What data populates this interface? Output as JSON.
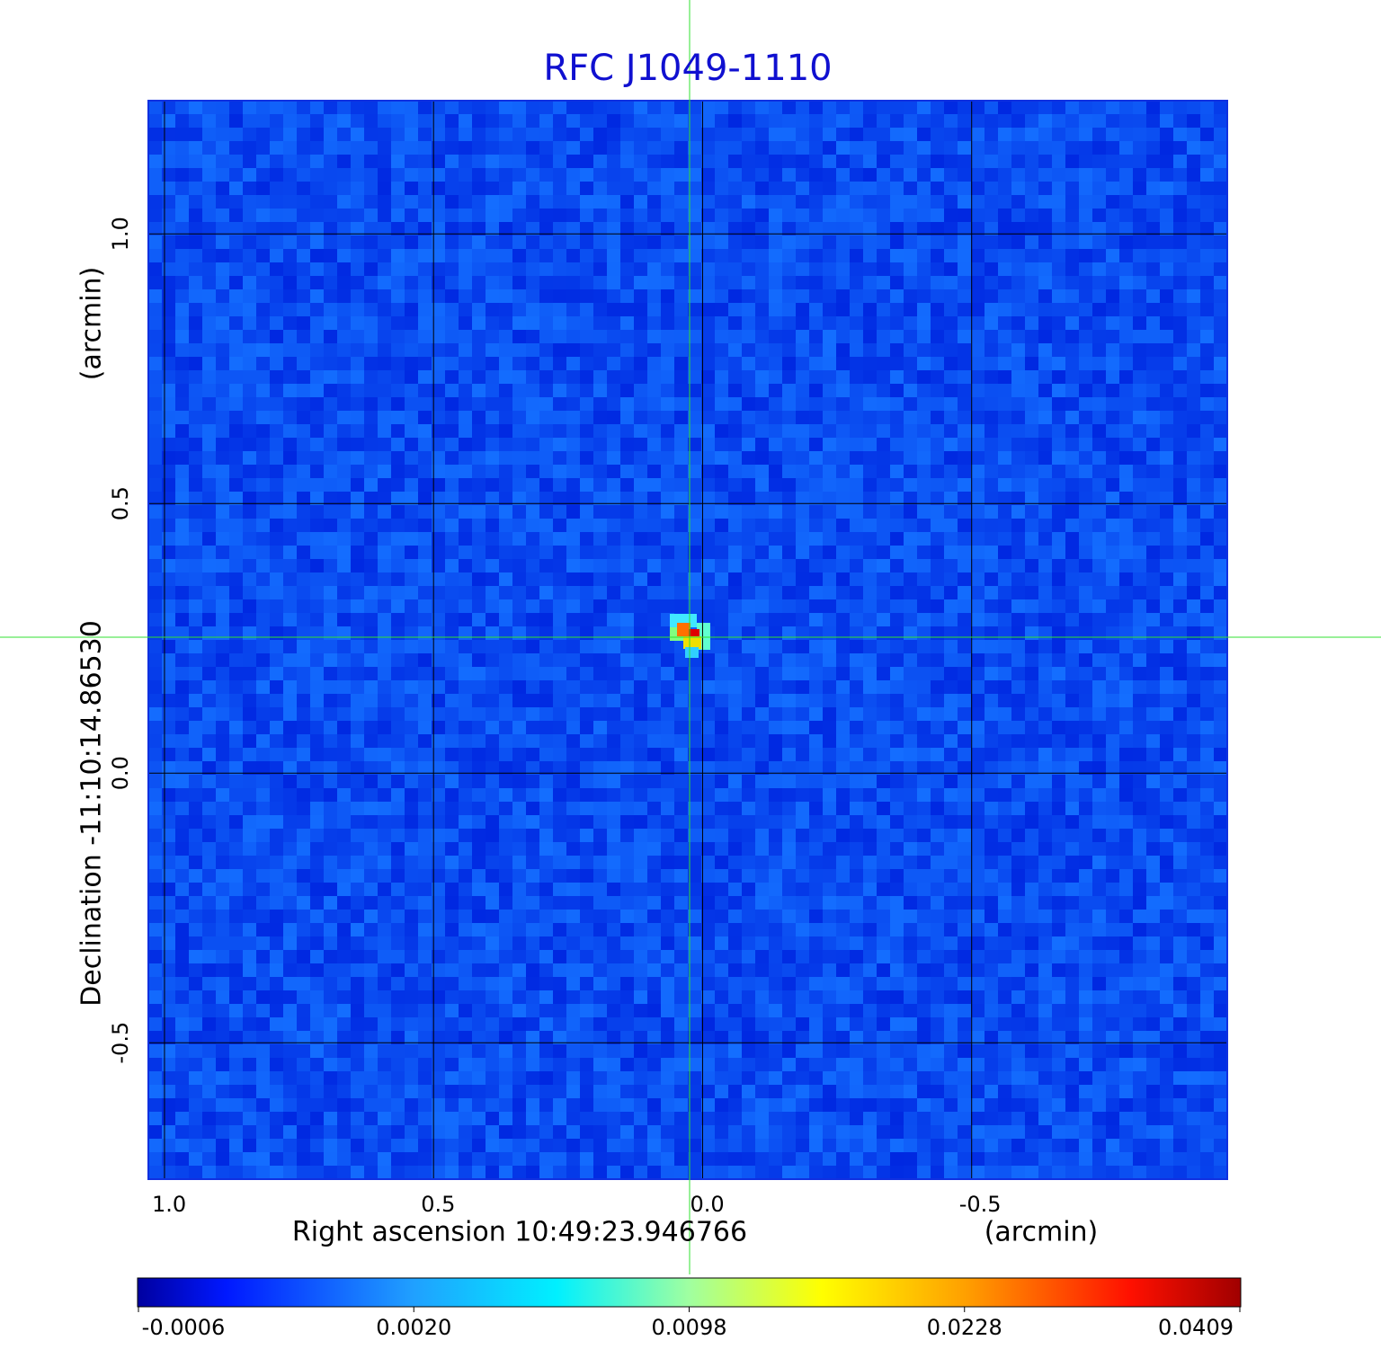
{
  "chart_data": {
    "type": "image",
    "title": "RFC J1049-1110",
    "x_label": "Right ascension  10:49:23.946766",
    "x_unit": "(arcmin)",
    "y_label": "Declination  -11:10:14.86530",
    "y_unit": "(arcmin)",
    "xlim": [
      1.03,
      -0.975
    ],
    "ylim": [
      -0.753,
      1.247
    ],
    "xticks": [
      {
        "value": 1,
        "label": "1.0"
      },
      0.5,
      {
        "value": 0,
        "label": "0.0"
      },
      -0.5
    ],
    "yticks": [
      {
        "value": 1,
        "label": "1.0"
      },
      0.5,
      {
        "value": 0,
        "label": "0.0"
      },
      -0.5
    ],
    "grid": true,
    "colorbar_ticks": [
      -0.0006,
      {
        "value": 0.002,
        "label": "0.0020"
      },
      0.0098,
      0.0228,
      0.0409
    ]
  }
}
